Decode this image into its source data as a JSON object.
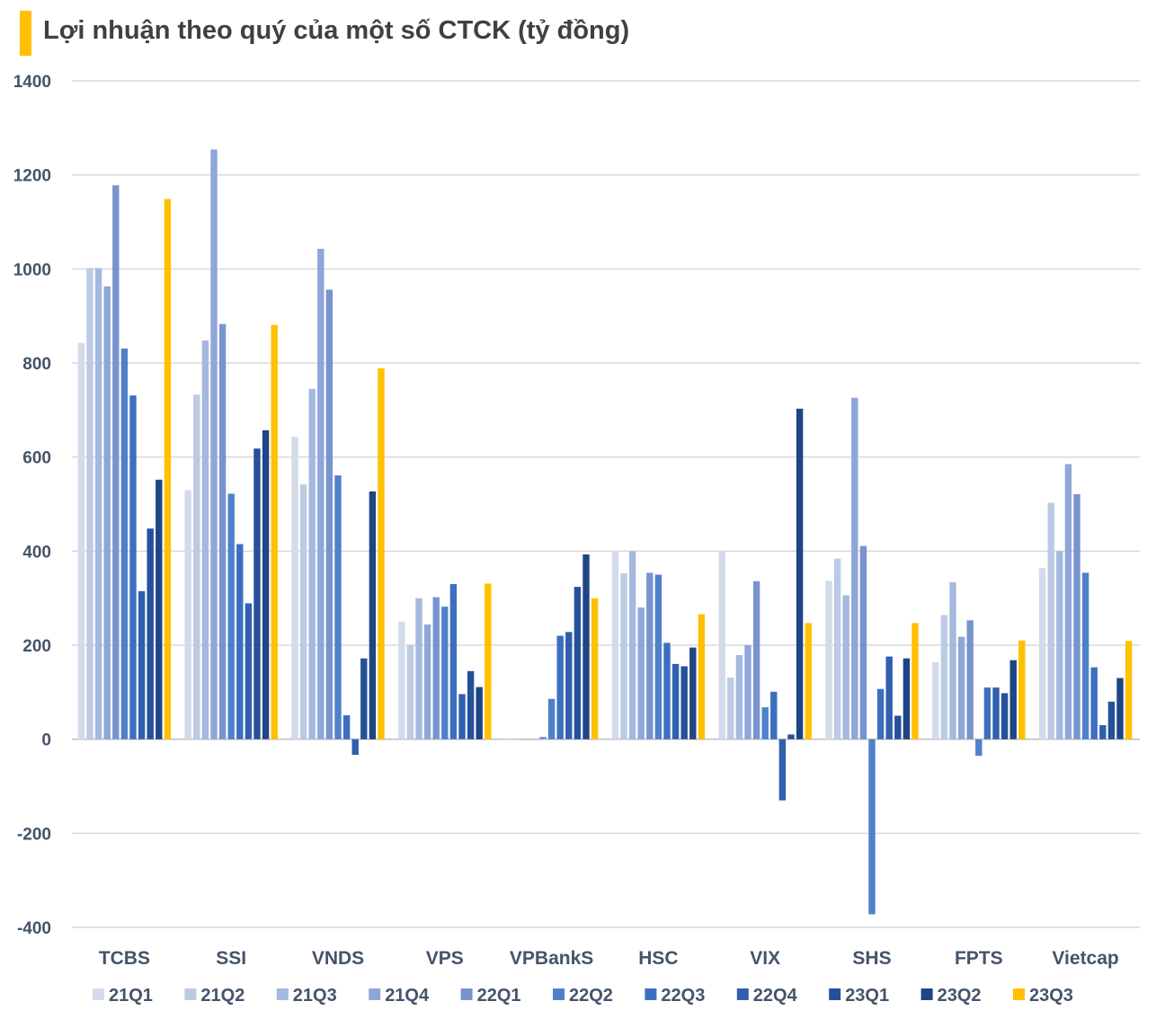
{
  "colors": {
    "accent": "#FFC000",
    "gridline": "#d9d9d9",
    "text": "#44546a",
    "series": [
      "#d3dbea",
      "#bccae4",
      "#a5b8de",
      "#8ea6d8",
      "#7894cf",
      "#4f80cb",
      "#3d6fc0",
      "#305fae",
      "#26509a",
      "#1f4487",
      "#FFC000"
    ]
  },
  "chart_data": {
    "type": "bar",
    "title": "Lợi nhuận theo quý của một số CTCK (tỷ đồng)",
    "xlabel": "",
    "ylabel": "",
    "ylim": [
      -400,
      1400
    ],
    "yticks": [
      -400,
      -200,
      0,
      200,
      400,
      600,
      800,
      1000,
      1200,
      1400
    ],
    "grid": true,
    "legend_position": "bottom",
    "categories": [
      "TCBS",
      "SSI",
      "VNDS",
      "VPS",
      "VPBankS",
      "HSC",
      "VIX",
      "SHS",
      "FPTS",
      "Vietcap"
    ],
    "series": [
      {
        "name": "21Q1",
        "values": [
          843,
          530,
          643,
          250,
          2,
          400,
          400,
          337,
          164,
          364
        ]
      },
      {
        "name": "21Q2",
        "values": [
          1002,
          733,
          542,
          200,
          1,
          353,
          131,
          384,
          264,
          503
        ]
      },
      {
        "name": "21Q3",
        "values": [
          1002,
          848,
          745,
          300,
          0,
          400,
          179,
          306,
          334,
          400
        ]
      },
      {
        "name": "21Q4",
        "values": [
          963,
          1254,
          1043,
          244,
          0,
          280,
          200,
          726,
          218,
          585
        ]
      },
      {
        "name": "22Q1",
        "values": [
          1178,
          883,
          956,
          302,
          5,
          354,
          336,
          411,
          253,
          521
        ]
      },
      {
        "name": "22Q2",
        "values": [
          831,
          522,
          561,
          282,
          86,
          350,
          68,
          -372,
          -35,
          354
        ]
      },
      {
        "name": "22Q3",
        "values": [
          731,
          415,
          51,
          330,
          220,
          205,
          101,
          107,
          110,
          153
        ]
      },
      {
        "name": "22Q4",
        "values": [
          315,
          289,
          -33,
          96,
          228,
          160,
          -130,
          176,
          110,
          30
        ]
      },
      {
        "name": "23Q1",
        "values": [
          448,
          618,
          172,
          145,
          324,
          155,
          10,
          50,
          98,
          80
        ]
      },
      {
        "name": "23Q2",
        "values": [
          552,
          657,
          527,
          111,
          393,
          195,
          703,
          172,
          168,
          130
        ]
      },
      {
        "name": "23Q3",
        "values": [
          1149,
          881,
          789,
          331,
          300,
          266,
          247,
          247,
          210,
          209
        ]
      }
    ]
  }
}
